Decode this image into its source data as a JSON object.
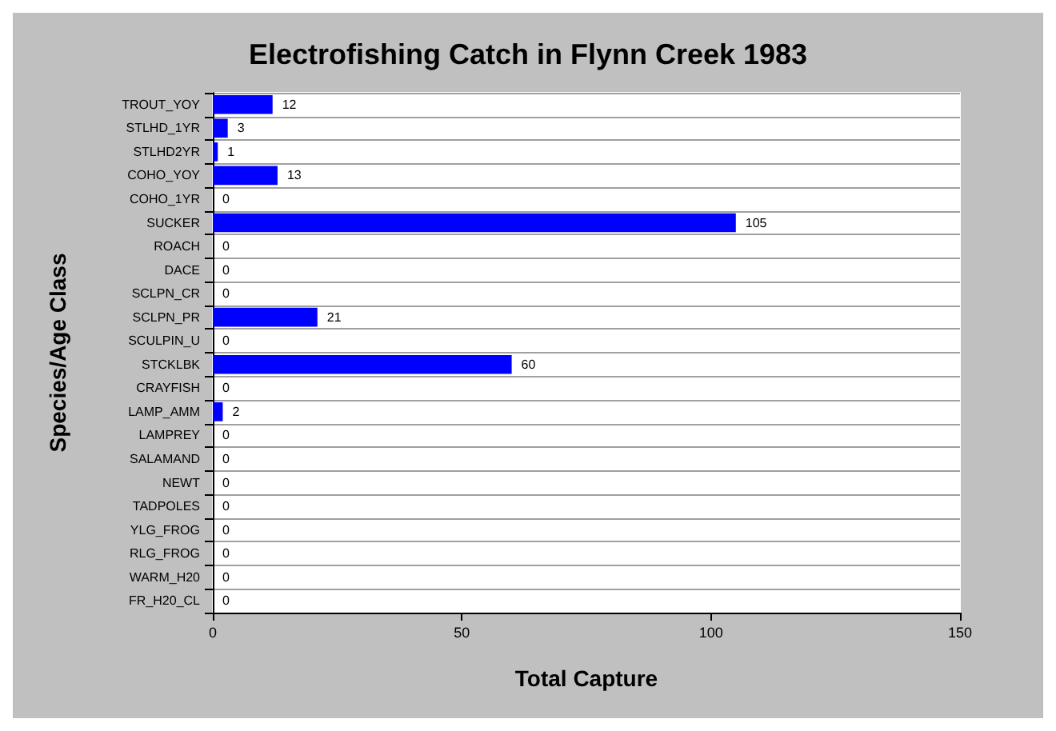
{
  "chart_data": {
    "type": "bar",
    "orientation": "horizontal",
    "title": "Electrofishing Catch in Flynn Creek 1983",
    "xlabel": "Total Capture",
    "ylabel": "Species/Age Class",
    "categories": [
      "TROUT_YOY",
      "STLHD_1YR",
      "STLHD2YR",
      "COHO_YOY",
      "COHO_1YR",
      "SUCKER",
      "ROACH",
      "DACE",
      "SCLPN_CR",
      "SCLPN_PR",
      "SCULPIN_U",
      "STCKLBK",
      "CRAYFISH",
      "LAMP_AMM",
      "LAMPREY",
      "SALAMAND",
      "NEWT",
      "TADPOLES",
      "YLG_FROG",
      "RLG_FROG",
      "WARM_H20",
      "FR_H20_CL"
    ],
    "values": [
      12,
      3,
      1,
      13,
      0,
      105,
      0,
      0,
      0,
      21,
      0,
      60,
      0,
      2,
      0,
      0,
      0,
      0,
      0,
      0,
      0,
      0
    ],
    "color": "#0000ff",
    "xlim": [
      0,
      150
    ],
    "xticks": [
      0,
      50,
      100,
      150
    ],
    "grid": "y",
    "data_labels": true
  }
}
